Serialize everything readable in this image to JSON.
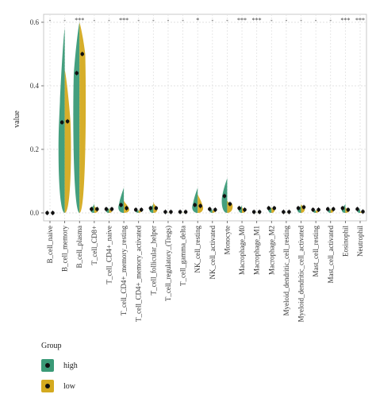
{
  "chart_data": {
    "type": "violin",
    "ylabel": "value",
    "ylim": [
      0,
      0.6
    ],
    "y_ticks": [
      "0.0",
      "0.2",
      "0.4",
      "0.6"
    ],
    "grid": true,
    "categories": [
      "B_cell_naive",
      "B_cell_memory",
      "B_cell_plasma",
      "T_cell_CD8+",
      "T_cell_CD4+_naive",
      "T_cell_CD4+_memory_resting",
      "T_cell_CD4+_memory_activated",
      "T_cell_follicular_helper",
      "T_cell_regulatory_(Tregs)",
      "T_cell_gamma_delta",
      "NK_cell_resting",
      "NK_cell_activated",
      "Monocyte",
      "Macrophage_M0",
      "Macrophage_M1",
      "Macrophage_M2",
      "Myeloid_dendritic_cell_resting",
      "Myeloid_dendritic_cell_activated",
      "Mast_cell_resting",
      "Mast_cell_activated",
      "Eosinophil",
      "Neutrophil"
    ],
    "significance": [
      "-",
      "-",
      "***",
      "-",
      "-",
      "***",
      "-",
      "-",
      "-",
      "-",
      "*",
      "-",
      "-",
      "***",
      "***",
      "-",
      "-",
      "-",
      "-",
      "-",
      "***",
      "***"
    ],
    "series": [
      {
        "name": "high",
        "color": "#3a9a77",
        "medians": [
          0.0,
          0.285,
          0.44,
          0.012,
          0.012,
          0.025,
          0.01,
          0.015,
          0.003,
          0.003,
          0.025,
          0.012,
          0.053,
          0.015,
          0.003,
          0.015,
          0.003,
          0.015,
          0.01,
          0.012,
          0.015,
          0.012
        ],
        "max": [
          0.0,
          0.58,
          0.6,
          0.03,
          0.018,
          0.08,
          0.012,
          0.03,
          0.004,
          0.004,
          0.08,
          0.015,
          0.11,
          0.025,
          0.004,
          0.02,
          0.004,
          0.025,
          0.012,
          0.015,
          0.03,
          0.015
        ]
      },
      {
        "name": "low",
        "color": "#d4aa1f",
        "medians": [
          0.0,
          0.288,
          0.5,
          0.012,
          0.012,
          0.015,
          0.01,
          0.015,
          0.003,
          0.003,
          0.022,
          0.01,
          0.028,
          0.01,
          0.003,
          0.015,
          0.003,
          0.018,
          0.01,
          0.012,
          0.01,
          0.004
        ],
        "max": [
          0.0,
          0.45,
          0.6,
          0.025,
          0.015,
          0.04,
          0.012,
          0.035,
          0.004,
          0.004,
          0.06,
          0.012,
          0.04,
          0.02,
          0.004,
          0.02,
          0.004,
          0.03,
          0.012,
          0.015,
          0.02,
          0.008
        ]
      }
    ],
    "legend": {
      "title": "Group",
      "position": "bottom-left"
    }
  }
}
